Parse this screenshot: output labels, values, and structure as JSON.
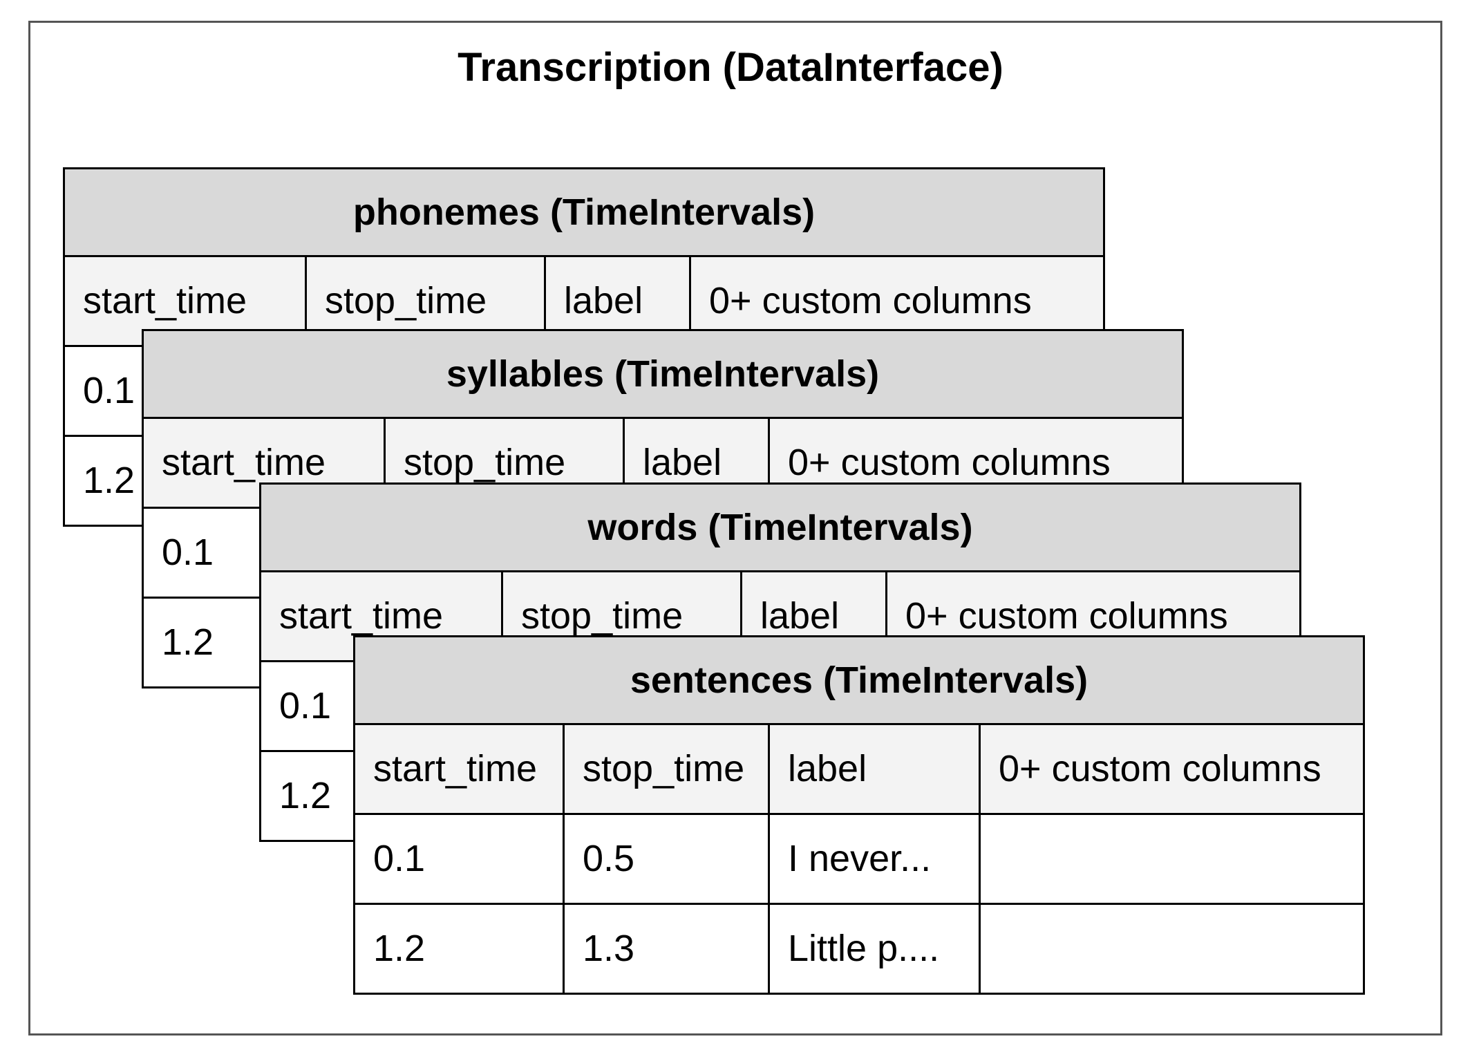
{
  "diagram": {
    "title": "Transcription (DataInterface)",
    "tables": [
      {
        "key": "phonemes",
        "title": "phonemes (TimeIntervals)",
        "columns": [
          "start_time",
          "stop_time",
          "label",
          "0+ custom columns"
        ],
        "rows": [
          [
            "0.1",
            "",
            "",
            ""
          ],
          [
            "1.2",
            "",
            "",
            ""
          ]
        ]
      },
      {
        "key": "syllables",
        "title": "syllables (TimeIntervals)",
        "columns": [
          "start_time",
          "stop_time",
          "label",
          "0+ custom columns"
        ],
        "rows": [
          [
            "0.1",
            "",
            "",
            ""
          ],
          [
            "1.2",
            "",
            "",
            ""
          ]
        ]
      },
      {
        "key": "words",
        "title": "words (TimeIntervals)",
        "columns": [
          "start_time",
          "stop_time",
          "label",
          "0+ custom columns"
        ],
        "rows": [
          [
            "0.1",
            "",
            "",
            ""
          ],
          [
            "1.2",
            "",
            "",
            ""
          ]
        ]
      },
      {
        "key": "sentences",
        "title": "sentences (TimeIntervals)",
        "columns": [
          "start_time",
          "stop_time",
          "label",
          "0+ custom columns"
        ],
        "rows": [
          [
            "0.1",
            "0.5",
            "I never...",
            ""
          ],
          [
            "1.2",
            "1.3",
            "Little p....",
            ""
          ]
        ]
      }
    ]
  }
}
